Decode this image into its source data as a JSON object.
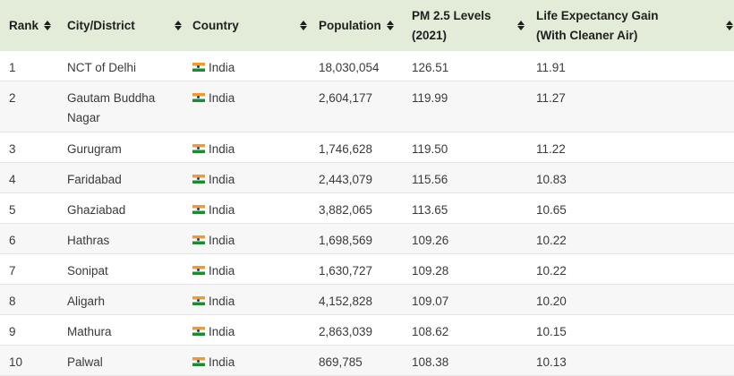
{
  "table": {
    "headers": {
      "rank": "Rank",
      "city": "City/District",
      "country": "Country",
      "population": "Population",
      "pm_line1": "PM 2.5 Levels",
      "pm_line2": "(2021)",
      "life_line1": "Life Expectancy Gain",
      "life_line2": "(With Cleaner Air)"
    },
    "rows": [
      {
        "rank": "1",
        "city": "NCT of Delhi",
        "country": "India",
        "population": "18,030,054",
        "pm25": "126.51",
        "life_gain": "11.91"
      },
      {
        "rank": "2",
        "city": "Gautam Buddha",
        "city2": "Nagar",
        "country": "India",
        "population": "2,604,177",
        "pm25": "119.99",
        "life_gain": "11.27"
      },
      {
        "rank": "3",
        "city": "Gurugram",
        "country": "India",
        "population": "1,746,628",
        "pm25": "119.50",
        "life_gain": "11.22"
      },
      {
        "rank": "4",
        "city": "Faridabad",
        "country": "India",
        "population": "2,443,079",
        "pm25": "115.56",
        "life_gain": "10.83"
      },
      {
        "rank": "5",
        "city": "Ghaziabad",
        "country": "India",
        "population": "3,882,065",
        "pm25": "113.65",
        "life_gain": "10.65"
      },
      {
        "rank": "6",
        "city": "Hathras",
        "country": "India",
        "population": "1,698,569",
        "pm25": "109.26",
        "life_gain": "10.22"
      },
      {
        "rank": "7",
        "city": "Sonipat",
        "country": "India",
        "population": "1,630,727",
        "pm25": "109.28",
        "life_gain": "10.22"
      },
      {
        "rank": "8",
        "city": "Aligarh",
        "country": "India",
        "population": "4,152,828",
        "pm25": "109.07",
        "life_gain": "10.20"
      },
      {
        "rank": "9",
        "city": "Mathura",
        "country": "India",
        "population": "2,863,039",
        "pm25": "108.62",
        "life_gain": "10.15"
      },
      {
        "rank": "10",
        "city": "Palwal",
        "country": "India",
        "population": "869,785",
        "pm25": "108.38",
        "life_gain": "10.13"
      }
    ],
    "flag_icon": "india-flag-icon",
    "colors": {
      "header_bg": "#e2ecd8",
      "row_alt_bg": "#f7f7f7",
      "text": "#3a3a3a"
    }
  }
}
